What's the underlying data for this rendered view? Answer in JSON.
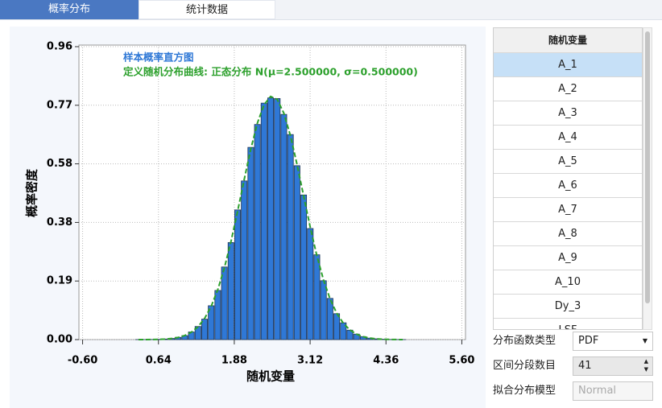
{
  "tabs": [
    "概率分布",
    "统计数据"
  ],
  "chart_data": {
    "type": "histogram",
    "xlabel": "随机变量",
    "ylabel": "概率密度",
    "bins": [
      0.26,
      0.368,
      0.476,
      0.584,
      0.692,
      0.8,
      0.908,
      1.016,
      1.124,
      1.232,
      1.34,
      1.448,
      1.556,
      1.664,
      1.772,
      1.88,
      1.988,
      2.096,
      2.204,
      2.312,
      2.42,
      2.528,
      2.636,
      2.744,
      2.852,
      2.96,
      3.068,
      3.176,
      3.284,
      3.392,
      3.5,
      3.608,
      3.716,
      3.824,
      3.932,
      4.04,
      4.148,
      4.256,
      4.364,
      4.472,
      4.58,
      4.688
    ],
    "series": [
      {
        "name": "样本概率直方图",
        "color": "#2f78d6",
        "values": [
          0.0002,
          0.0001,
          0.0005,
          0.0009,
          0.0019,
          0.0037,
          0.0074,
          0.013,
          0.025,
          0.043,
          0.067,
          0.111,
          0.161,
          0.238,
          0.318,
          0.425,
          0.52,
          0.63,
          0.705,
          0.775,
          0.792,
          0.79,
          0.738,
          0.672,
          0.57,
          0.474,
          0.364,
          0.278,
          0.193,
          0.135,
          0.085,
          0.055,
          0.031,
          0.018,
          0.0098,
          0.0048,
          0.0025,
          0.0012,
          0.0005,
          0.0002,
          0.0001
        ]
      },
      {
        "name": "定义随机分布曲线: 正态分布 N(μ=2.500000, σ=0.500000)",
        "type": "line",
        "color": "#2ca02c",
        "x": [
          0.314,
          0.422,
          0.53,
          0.638,
          0.746,
          0.854,
          0.962,
          1.07,
          1.178,
          1.286,
          1.394,
          1.502,
          1.61,
          1.718,
          1.826,
          1.934,
          2.042,
          2.15,
          2.258,
          2.366,
          2.474,
          2.582,
          2.69,
          2.798,
          2.906,
          3.014,
          3.122,
          3.23,
          3.338,
          3.446,
          3.554,
          3.662,
          3.77,
          3.878,
          3.986,
          4.094,
          4.202,
          4.31,
          4.418,
          4.526,
          4.634
        ],
        "values": [
          0.0001,
          0.0001,
          0.0003,
          0.0008,
          0.0017,
          0.0035,
          0.007,
          0.0134,
          0.0242,
          0.0419,
          0.0691,
          0.1088,
          0.1637,
          0.2348,
          0.3216,
          0.4204,
          0.5245,
          0.6245,
          0.7097,
          0.7697,
          0.7968,
          0.7872,
          0.7422,
          0.6681,
          0.5738,
          0.4704,
          0.368,
          0.2749,
          0.1959,
          0.1333,
          0.0865,
          0.0536,
          0.0317,
          0.0179,
          0.0096,
          0.005,
          0.0024,
          0.0011,
          0.0005,
          0.0002,
          0.0001
        ]
      }
    ],
    "xlim": [
      -0.66,
      5.66
    ],
    "xticks": [
      {
        "value": -0.6,
        "label": "-0.60"
      },
      0.64,
      1.88,
      3.12,
      4.36,
      {
        "value": 5.6,
        "label": "5.60"
      }
    ],
    "ylim": [
      0,
      0.96
    ],
    "yticks": [
      {
        "value": 0,
        "label": "0.00"
      },
      {
        "value": 0.192,
        "label": "0.19"
      },
      {
        "value": 0.384,
        "label": "0.38"
      },
      {
        "value": 0.576,
        "label": "0.58"
      },
      {
        "value": 0.768,
        "label": "0.77"
      },
      0.96
    ],
    "grid": true
  },
  "variable_list": {
    "header": "随机变量",
    "items": [
      "A_1",
      "A_2",
      "A_3",
      "A_4",
      "A_5",
      "A_6",
      "A_7",
      "A_8",
      "A_9",
      "A_10",
      "Dy_3",
      "LSF"
    ],
    "selected": 0
  },
  "controls": [
    {
      "label": "分布函数类型",
      "value": "PDF"
    },
    {
      "label": "区间分段数目",
      "value": 41
    },
    {
      "label": "拟合分布模型",
      "value": "Normal"
    }
  ]
}
